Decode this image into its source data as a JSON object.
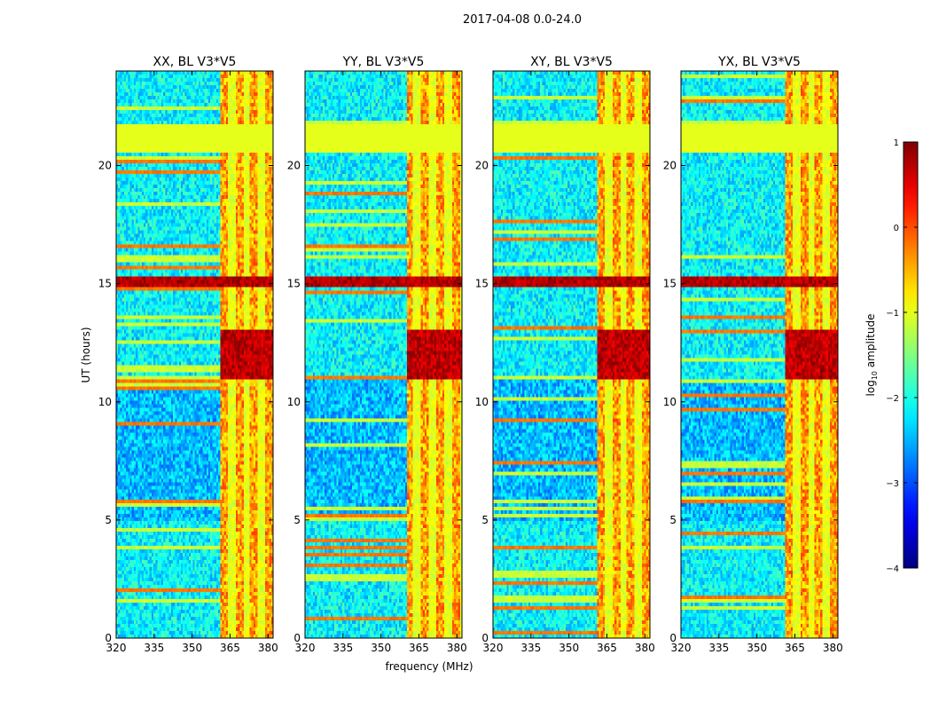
{
  "figure": {
    "suptitle": "2017-04-08 0.0-24.0",
    "xlabel": "frequency (MHz)",
    "ylabel": "UT (hours)"
  },
  "chart_data": {
    "type": "heatmap",
    "xlim": [
      320,
      382
    ],
    "ylim": [
      0,
      24
    ],
    "xticks": [
      320,
      335,
      350,
      365,
      380
    ],
    "yticks": [
      0,
      5,
      10,
      15,
      20
    ],
    "panels": [
      {
        "title": "XX, BL V3*V5"
      },
      {
        "title": "YY, BL V3*V5"
      },
      {
        "title": "XY, BL V3*V5"
      },
      {
        "title": "YX, BL V3*V5"
      }
    ],
    "colorbar": {
      "label": "log10 amplitude",
      "label_base": "log",
      "label_sub": "10",
      "label_rest": " amplitude",
      "range": [
        -4,
        1
      ],
      "ticks": [
        1,
        0,
        -1,
        -2,
        -3,
        -4
      ],
      "tick_labels": [
        "1",
        "0",
        "−1",
        "−2",
        "−3",
        "−4"
      ],
      "colormap": "jet"
    },
    "features": {
      "flagged_uniform_band_hours": [
        20.5,
        21.7
      ],
      "strong_band_hours": [
        14.8,
        15.3
      ],
      "high_amplitude_freq_range_MHz": [
        361,
        382
      ],
      "high_amplitude_freq_range_YY_MHz": [
        360,
        382
      ]
    }
  },
  "colors": {
    "background": "#ffffff",
    "axis": "#000000"
  }
}
